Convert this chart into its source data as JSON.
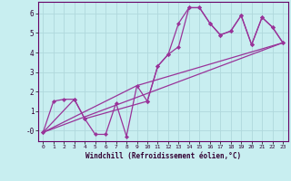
{
  "xlabel": "Windchill (Refroidissement éolien,°C)",
  "bg_color": "#c8eef0",
  "grid_color": "#b0d8dc",
  "line_color": "#993399",
  "xlim": [
    -0.5,
    23.5
  ],
  "ylim": [
    -0.55,
    6.6
  ],
  "xticks": [
    0,
    1,
    2,
    3,
    4,
    5,
    6,
    7,
    8,
    9,
    10,
    11,
    12,
    13,
    14,
    15,
    16,
    17,
    18,
    19,
    20,
    21,
    22,
    23
  ],
  "yticks": [
    0,
    1,
    2,
    3,
    4,
    5,
    6
  ],
  "ytick_labels": [
    "-0",
    "1",
    "2",
    "3",
    "4",
    "5",
    "6"
  ],
  "line1_x": [
    0,
    1,
    2,
    3,
    4,
    5,
    6,
    7,
    8,
    9,
    10,
    11,
    12,
    13,
    14,
    15,
    16,
    17,
    18,
    19,
    20,
    21,
    22,
    23
  ],
  "line1_y": [
    -0.1,
    1.5,
    1.6,
    1.6,
    0.6,
    -0.2,
    -0.2,
    1.4,
    -0.3,
    2.3,
    1.5,
    3.3,
    3.9,
    5.5,
    6.3,
    6.3,
    5.5,
    4.9,
    5.1,
    5.9,
    4.4,
    5.8,
    5.3,
    4.5
  ],
  "line2_x": [
    0,
    3,
    4,
    10,
    11,
    12,
    13,
    14,
    15,
    16,
    17,
    18,
    19,
    20,
    21,
    22,
    23
  ],
  "line2_y": [
    -0.1,
    1.6,
    0.6,
    1.5,
    3.3,
    3.9,
    4.3,
    6.3,
    6.3,
    5.5,
    4.9,
    5.1,
    5.9,
    4.4,
    5.8,
    5.3,
    4.5
  ],
  "line3_x": [
    0,
    23
  ],
  "line3_y": [
    -0.1,
    4.5
  ],
  "line4_x": [
    0,
    9,
    23
  ],
  "line4_y": [
    -0.1,
    2.3,
    4.5
  ]
}
